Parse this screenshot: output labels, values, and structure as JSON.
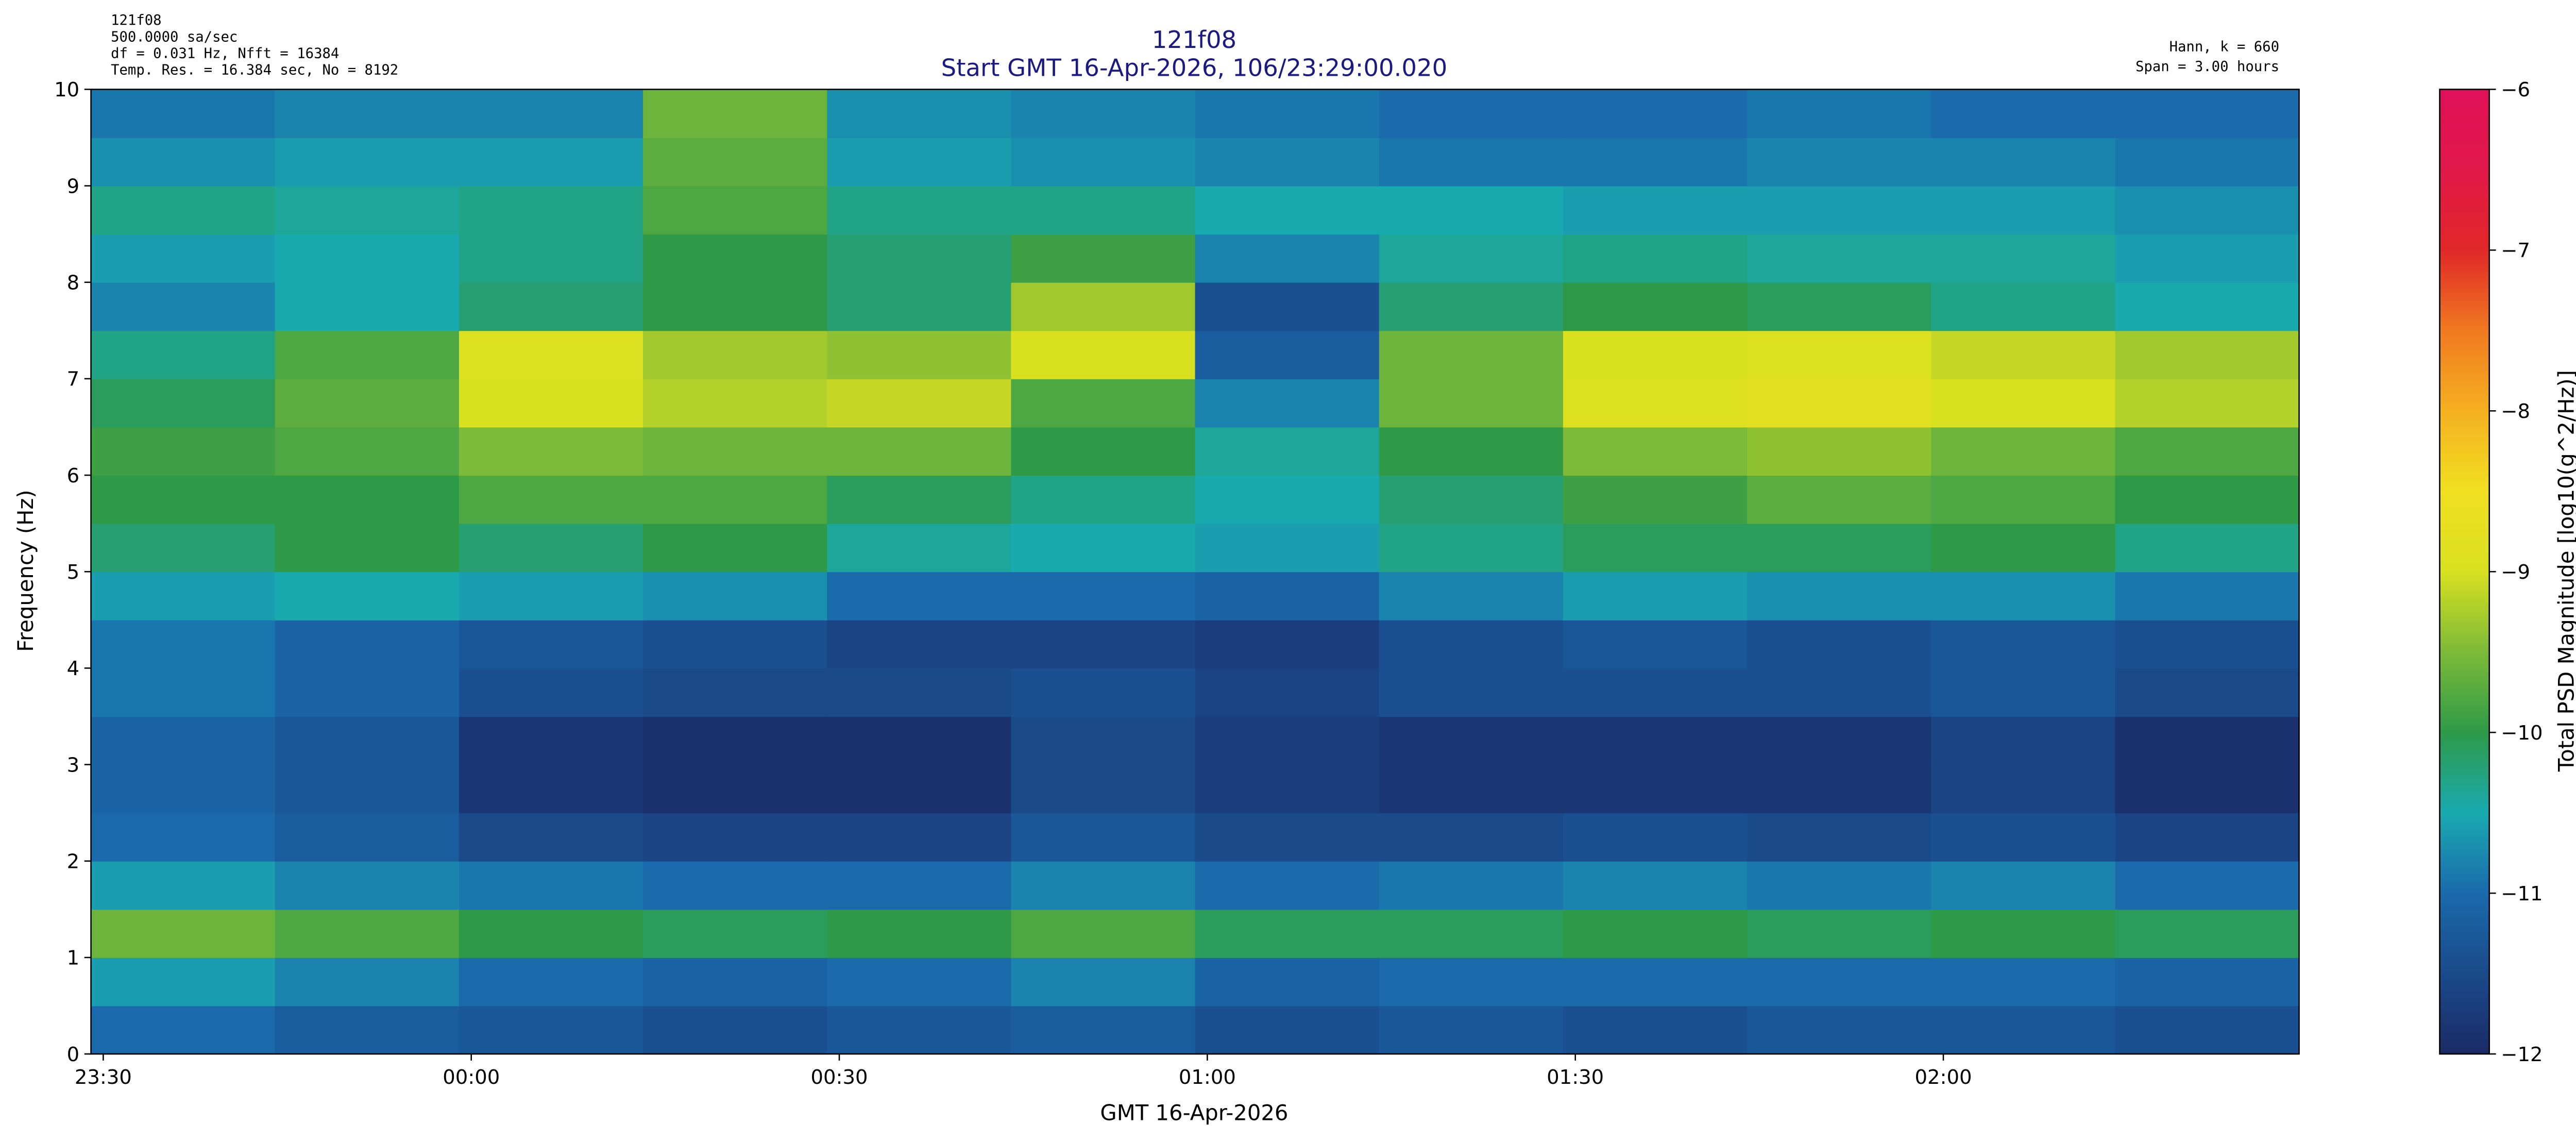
{
  "chart_data": {
    "type": "heatmap",
    "title": "121f08",
    "subtitle": "Start GMT 16-Apr-2026, 106/23:29:00.020",
    "annotations_left": [
      "121f08",
      "500.0000 sa/sec",
      "df = 0.031 Hz,  Nfft = 16384",
      "Temp. Res. = 16.384 sec, No = 8192"
    ],
    "annotations_right": [
      "Hann, k = 660",
      "Span = 3.00 hours"
    ],
    "x_label": "GMT 16-Apr-2026",
    "y_label": "Frequency (Hz)",
    "colorbar_label": "Total PSD Magnitude [log10(g^2/Hz)]",
    "xlim": [
      0,
      180
    ],
    "xticks": [
      {
        "value": 1,
        "label": "23:30"
      },
      {
        "value": 31,
        "label": "00:00"
      },
      {
        "value": 61,
        "label": "00:30"
      },
      {
        "value": 91,
        "label": "01:00"
      },
      {
        "value": 121,
        "label": "01:30"
      },
      {
        "value": 151,
        "label": "02:00"
      }
    ],
    "ylim": [
      0,
      10
    ],
    "yticks": [
      0,
      1,
      2,
      3,
      4,
      5,
      6,
      7,
      8,
      9,
      10
    ],
    "clim": [
      -12,
      -6
    ],
    "cticks": [
      {
        "value": -12,
        "label": "−12"
      },
      {
        "value": -11,
        "label": "−11"
      },
      {
        "value": -10,
        "label": "−10"
      },
      {
        "value": -9,
        "label": "−9"
      },
      {
        "value": -8,
        "label": "−8"
      },
      {
        "value": -7,
        "label": "−7"
      },
      {
        "value": -6,
        "label": "−6"
      }
    ],
    "colors": [
      "#1a2b66",
      "#1a4a8a",
      "#1a6aac",
      "#19aab0",
      "#2e9a48",
      "#7cba38",
      "#d8e020",
      "#f0e020",
      "#f5b020",
      "#f07a20",
      "#e02828",
      "#e01848",
      "#e0105a"
    ],
    "xbins": [
      0,
      15,
      30,
      45,
      60,
      75,
      90,
      105,
      120,
      135,
      150,
      165,
      180
    ],
    "ybins": [
      0,
      0.5,
      1,
      1.5,
      2,
      2.5,
      3,
      3.5,
      4,
      4.5,
      5,
      5.5,
      6,
      6.5,
      7,
      7.5,
      8,
      8.5,
      9,
      9.5,
      10
    ],
    "z": [
      [
        -11.0,
        -11.2,
        -11.3,
        -11.4,
        -11.3,
        -11.2,
        -11.4,
        -11.3,
        -11.4,
        -11.3,
        -11.3,
        -11.4
      ],
      [
        -10.6,
        -10.8,
        -11.0,
        -11.1,
        -11.0,
        -10.8,
        -11.1,
        -11.0,
        -11.0,
        -11.0,
        -11.0,
        -11.1
      ],
      [
        -9.6,
        -9.8,
        -10.0,
        -10.1,
        -10.0,
        -9.8,
        -10.1,
        -10.1,
        -10.0,
        -10.1,
        -10.0,
        -10.1
      ],
      [
        -10.6,
        -10.8,
        -10.9,
        -11.0,
        -11.0,
        -10.8,
        -11.0,
        -10.9,
        -10.8,
        -10.9,
        -10.8,
        -11.0
      ],
      [
        -11.0,
        -11.2,
        -11.5,
        -11.6,
        -11.6,
        -11.3,
        -11.5,
        -11.5,
        -11.4,
        -11.5,
        -11.4,
        -11.6
      ],
      [
        -11.1,
        -11.3,
        -11.8,
        -11.9,
        -11.9,
        -11.5,
        -11.7,
        -11.8,
        -11.8,
        -11.8,
        -11.6,
        -11.9
      ],
      [
        -11.1,
        -11.3,
        -11.8,
        -11.9,
        -11.9,
        -11.5,
        -11.7,
        -11.8,
        -11.8,
        -11.8,
        -11.6,
        -11.9
      ],
      [
        -10.9,
        -11.1,
        -11.4,
        -11.5,
        -11.5,
        -11.4,
        -11.6,
        -11.4,
        -11.4,
        -11.4,
        -11.3,
        -11.5
      ],
      [
        -10.9,
        -11.1,
        -11.3,
        -11.4,
        -11.6,
        -11.6,
        -11.7,
        -11.4,
        -11.3,
        -11.4,
        -11.3,
        -11.4
      ],
      [
        -10.6,
        -10.5,
        -10.6,
        -10.7,
        -11.0,
        -11.0,
        -11.1,
        -10.8,
        -10.6,
        -10.7,
        -10.7,
        -10.9
      ],
      [
        -10.2,
        -10.0,
        -10.2,
        -10.0,
        -10.4,
        -10.5,
        -10.6,
        -10.3,
        -10.1,
        -10.1,
        -10.0,
        -10.3
      ],
      [
        -10.0,
        -10.0,
        -9.8,
        -9.8,
        -10.1,
        -10.3,
        -10.5,
        -10.2,
        -9.9,
        -9.7,
        -9.8,
        -10.0
      ],
      [
        -9.9,
        -9.8,
        -9.5,
        -9.6,
        -9.6,
        -10.0,
        -10.4,
        -10.0,
        -9.5,
        -9.4,
        -9.6,
        -9.8
      ],
      [
        -10.1,
        -9.7,
        -9.0,
        -9.2,
        -9.1,
        -9.8,
        -10.8,
        -9.6,
        -8.9,
        -8.8,
        -9.0,
        -9.2
      ],
      [
        -10.3,
        -9.8,
        -8.9,
        -9.3,
        -9.4,
        -9.0,
        -11.2,
        -9.6,
        -9.0,
        -8.9,
        -9.1,
        -9.3
      ],
      [
        -10.8,
        -10.5,
        -10.2,
        -10.0,
        -10.2,
        -9.3,
        -11.4,
        -10.2,
        -10.0,
        -10.1,
        -10.3,
        -10.5
      ],
      [
        -10.6,
        -10.5,
        -10.3,
        -10.0,
        -10.2,
        -9.9,
        -10.8,
        -10.4,
        -10.3,
        -10.4,
        -10.4,
        -10.6
      ],
      [
        -10.3,
        -10.4,
        -10.3,
        -9.8,
        -10.3,
        -10.3,
        -10.5,
        -10.5,
        -10.6,
        -10.6,
        -10.6,
        -10.7
      ],
      [
        -10.7,
        -10.6,
        -10.6,
        -9.7,
        -10.6,
        -10.7,
        -10.8,
        -10.9,
        -10.9,
        -10.8,
        -10.8,
        -10.9
      ],
      [
        -10.9,
        -10.8,
        -10.8,
        -9.6,
        -10.7,
        -10.8,
        -10.9,
        -11.0,
        -11.0,
        -10.9,
        -11.0,
        -11.0
      ]
    ]
  }
}
